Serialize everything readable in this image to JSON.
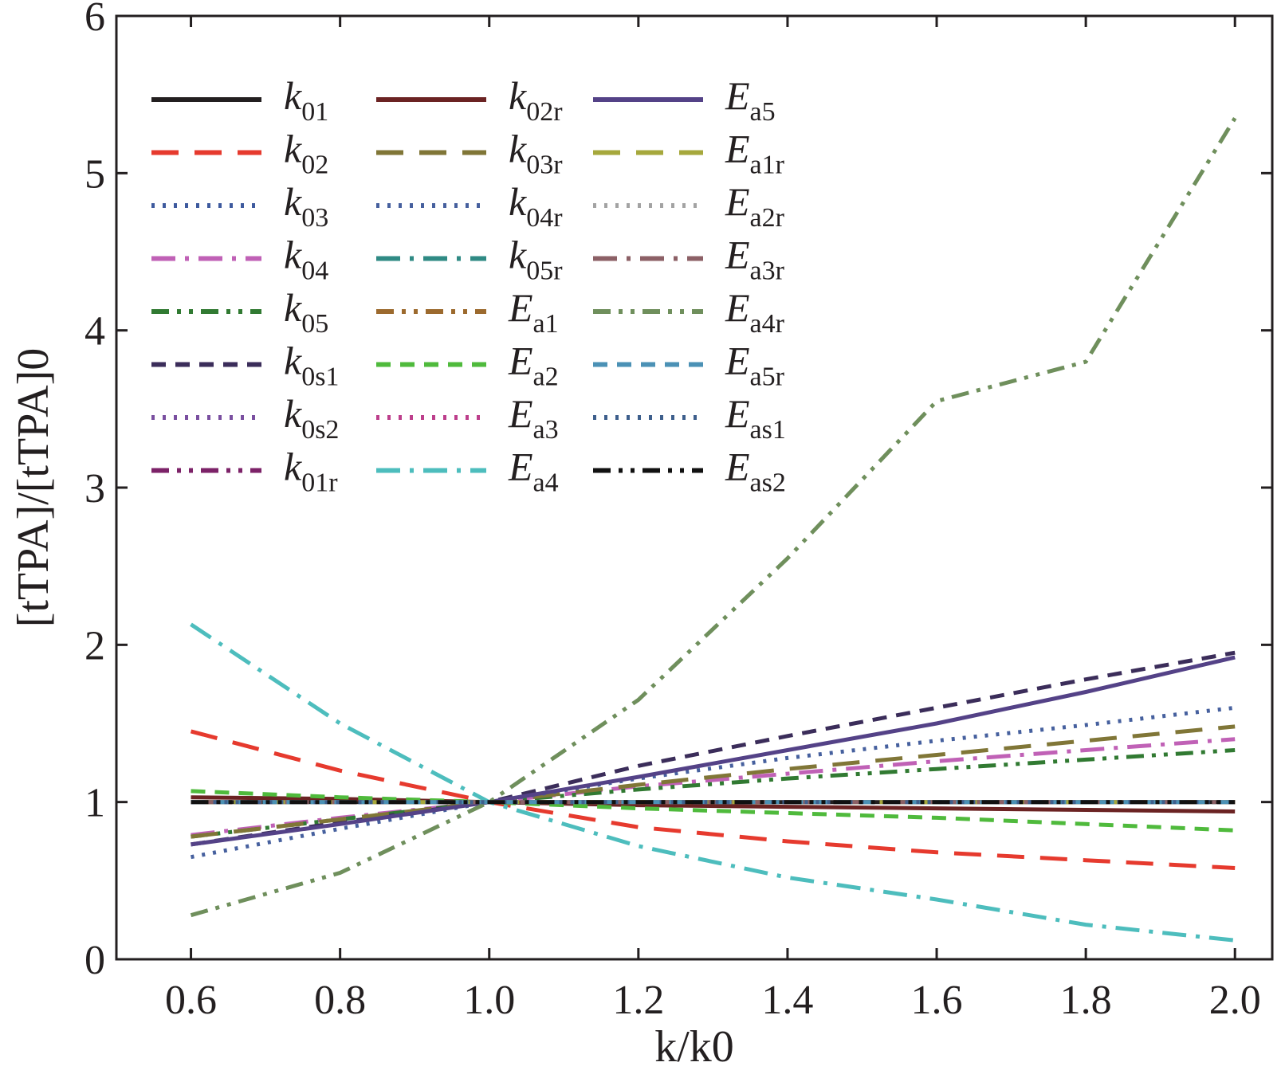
{
  "chart_data": {
    "type": "line",
    "title": "",
    "xlabel": "k/k0",
    "ylabel": "[tTPA]/[tTPA]0",
    "xlim": [
      0.5,
      2.05
    ],
    "ylim": [
      0,
      6
    ],
    "xticks": [
      0.6,
      0.8,
      1.0,
      1.2,
      1.4,
      1.6,
      1.8,
      2.0
    ],
    "yticks": [
      0,
      1,
      2,
      3,
      4,
      5,
      6
    ],
    "xtick_labels": [
      "0.6",
      "0.8",
      "1.0",
      "1.2",
      "1.4",
      "1.6",
      "1.8",
      "2.0"
    ],
    "ytick_labels": [
      "0",
      "1",
      "2",
      "3",
      "4",
      "5",
      "6"
    ],
    "grid": false,
    "legend_position": "top-left",
    "x": [
      0.6,
      0.8,
      1.0,
      1.2,
      1.4,
      1.6,
      1.8,
      2.0
    ],
    "series": [
      {
        "name": "k01",
        "sym": "k",
        "sub": "01",
        "color": "#231f20",
        "dash": "none",
        "values": [
          1.0,
          1.0,
          1.0,
          1.0,
          1.0,
          1.0,
          1.0,
          1.0
        ]
      },
      {
        "name": "k02",
        "sym": "k",
        "sub": "02",
        "color": "#e63a2e",
        "dash": "long",
        "values": [
          1.45,
          1.2,
          1.0,
          0.84,
          0.75,
          0.68,
          0.63,
          0.58
        ]
      },
      {
        "name": "k03",
        "sym": "k",
        "sub": "03",
        "color": "#3e5a9e",
        "dash": "dot",
        "values": [
          1.0,
          1.0,
          1.0,
          1.0,
          1.0,
          1.0,
          1.0,
          1.0
        ]
      },
      {
        "name": "k04",
        "sym": "k",
        "sub": "04",
        "color": "#c061b6",
        "dash": "dashdot",
        "values": [
          0.79,
          0.9,
          1.0,
          1.1,
          1.18,
          1.26,
          1.33,
          1.4
        ]
      },
      {
        "name": "k05",
        "sym": "k",
        "sub": "05",
        "color": "#317a32",
        "dash": "dashdotdot",
        "values": [
          0.78,
          0.89,
          1.0,
          1.08,
          1.15,
          1.21,
          1.27,
          1.33
        ]
      },
      {
        "name": "k0s1",
        "sym": "k",
        "sub": "0s1",
        "color": "#3b2d5a",
        "dash": "dash",
        "values": [
          0.73,
          0.87,
          1.0,
          1.23,
          1.42,
          1.6,
          1.78,
          1.95
        ]
      },
      {
        "name": "k0s2",
        "sym": "k",
        "sub": "0s2",
        "color": "#7a4fa0",
        "dash": "dot",
        "values": [
          1.0,
          1.0,
          1.0,
          1.0,
          1.0,
          1.0,
          1.0,
          1.0
        ]
      },
      {
        "name": "k01r",
        "sym": "k",
        "sub": "01r",
        "color": "#7c2268",
        "dash": "dashdotdot",
        "values": [
          1.0,
          1.0,
          1.0,
          1.0,
          1.0,
          1.0,
          1.0,
          1.0
        ]
      },
      {
        "name": "k02r",
        "sym": "k",
        "sub": "02r",
        "color": "#6b2323",
        "dash": "none",
        "values": [
          1.03,
          1.02,
          1.0,
          0.98,
          0.97,
          0.96,
          0.95,
          0.94
        ]
      },
      {
        "name": "k03r",
        "sym": "k",
        "sub": "03r",
        "color": "#807637",
        "dash": "long",
        "values": [
          0.78,
          0.89,
          1.0,
          1.11,
          1.21,
          1.3,
          1.39,
          1.48
        ]
      },
      {
        "name": "k04r",
        "sym": "k",
        "sub": "04r",
        "color": "#46609e",
        "dash": "dot",
        "values": [
          0.65,
          0.83,
          1.0,
          1.15,
          1.28,
          1.39,
          1.49,
          1.6
        ]
      },
      {
        "name": "k05r",
        "sym": "k",
        "sub": "05r",
        "color": "#2f8a84",
        "dash": "dashdot",
        "values": [
          1.0,
          1.0,
          1.0,
          1.0,
          1.0,
          1.0,
          1.0,
          1.0
        ]
      },
      {
        "name": "Ea1",
        "sym": "E",
        "sub": "a1",
        "color": "#9c6a2e",
        "dash": "dashdotdot",
        "values": [
          1.0,
          1.0,
          1.0,
          1.0,
          1.0,
          1.0,
          1.0,
          1.0
        ]
      },
      {
        "name": "Ea2",
        "sym": "E",
        "sub": "a2",
        "color": "#4fba3c",
        "dash": "dash",
        "values": [
          1.07,
          1.03,
          1.0,
          0.96,
          0.93,
          0.9,
          0.86,
          0.82
        ]
      },
      {
        "name": "Ea3",
        "sym": "E",
        "sub": "a3",
        "color": "#bd3f8c",
        "dash": "dot",
        "values": [
          1.0,
          1.0,
          1.0,
          1.0,
          1.0,
          1.0,
          1.0,
          1.0
        ]
      },
      {
        "name": "Ea4",
        "sym": "E",
        "sub": "a4",
        "color": "#4dbdbd",
        "dash": "dashdot",
        "values": [
          2.13,
          1.5,
          1.0,
          0.72,
          0.52,
          0.38,
          0.22,
          0.12
        ]
      },
      {
        "name": "Ea5",
        "sym": "E",
        "sub": "a5",
        "color": "#544287",
        "dash": "none",
        "values": [
          0.73,
          0.86,
          1.0,
          1.16,
          1.33,
          1.5,
          1.7,
          1.92
        ]
      },
      {
        "name": "Ea1r",
        "sym": "E",
        "sub": "a1r",
        "color": "#a6a83c",
        "dash": "long",
        "values": [
          1.0,
          1.0,
          1.0,
          1.0,
          1.0,
          1.0,
          1.0,
          1.0
        ]
      },
      {
        "name": "Ea2r",
        "sym": "E",
        "sub": "a2r",
        "color": "#a3a3a3",
        "dash": "dot",
        "values": [
          1.0,
          1.0,
          1.0,
          1.0,
          1.0,
          1.0,
          1.0,
          1.0
        ]
      },
      {
        "name": "Ea3r",
        "sym": "E",
        "sub": "a3r",
        "color": "#8c6066",
        "dash": "dashdot",
        "values": [
          1.0,
          1.0,
          1.0,
          1.0,
          1.0,
          1.0,
          1.0,
          1.0
        ]
      },
      {
        "name": "Ea4r",
        "sym": "E",
        "sub": "a4r",
        "color": "#6f8f5c",
        "dash": "dashdotdot",
        "values": [
          0.28,
          0.55,
          1.0,
          1.65,
          2.55,
          3.55,
          3.8,
          5.35
        ]
      },
      {
        "name": "Ea5r",
        "sym": "E",
        "sub": "a5r",
        "color": "#4b91b5",
        "dash": "dash",
        "values": [
          1.0,
          1.0,
          1.0,
          1.0,
          1.0,
          1.0,
          1.0,
          1.0
        ]
      },
      {
        "name": "Eas1",
        "sym": "E",
        "sub": "as1",
        "color": "#3e5f8c",
        "dash": "dot",
        "values": [
          1.0,
          1.0,
          1.0,
          1.0,
          1.0,
          1.0,
          1.0,
          1.0
        ]
      },
      {
        "name": "Eas2",
        "sym": "E",
        "sub": "as2",
        "color": "#111111",
        "dash": "dashdotdot",
        "values": [
          1.0,
          1.0,
          1.0,
          1.0,
          1.0,
          1.0,
          1.0,
          1.0
        ]
      }
    ]
  }
}
